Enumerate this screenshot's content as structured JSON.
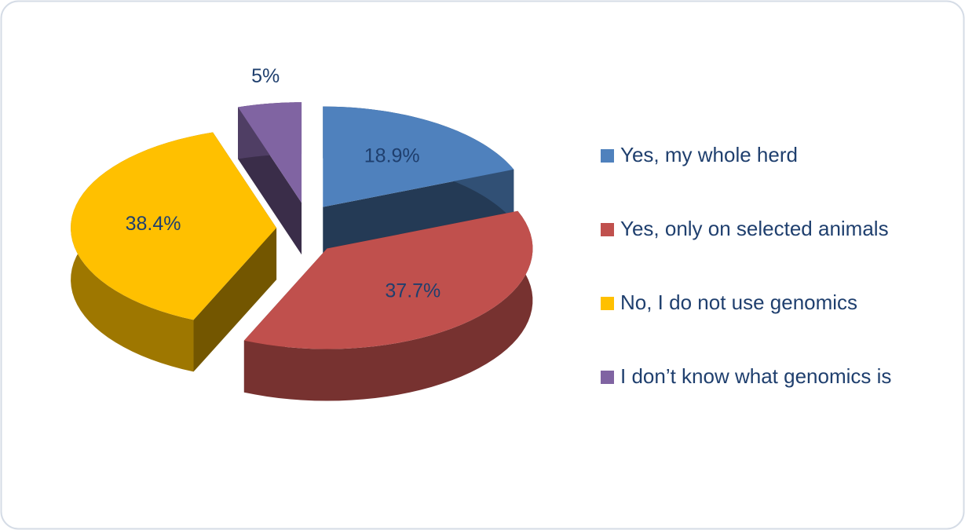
{
  "chart_data": {
    "type": "pie",
    "categories": [
      "Yes, my whole herd",
      "Yes, only on selected animals",
      "No, I do not use genomics",
      "I don’t know what genomics is"
    ],
    "values": [
      18.9,
      37.7,
      38.4,
      5
    ],
    "value_labels": [
      "18.9%",
      "37.7%",
      "38.4%",
      "5%"
    ],
    "colors": [
      "#4f81bd",
      "#c0504d",
      "#ffc000",
      "#8064a2"
    ],
    "legend": "right"
  }
}
